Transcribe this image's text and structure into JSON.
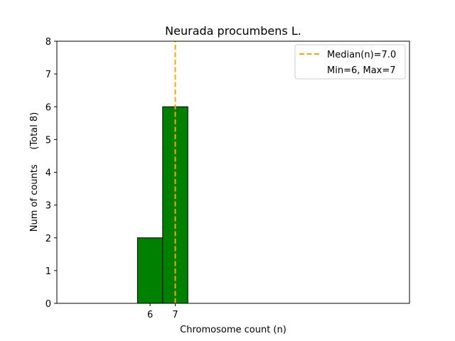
{
  "chart_data": {
    "type": "bar",
    "title": "Neurada procumbens L.",
    "xlabel": "Chromosome count (n)",
    "ylabel": "Num of counts     (Total 8)",
    "categories": [
      6,
      7
    ],
    "values": [
      2,
      6
    ],
    "xlim": [
      2.3,
      16.3
    ],
    "ylim": [
      0,
      8
    ],
    "yticks": [
      0,
      1,
      2,
      3,
      4,
      5,
      6,
      7,
      8
    ],
    "xticks": [
      6,
      7
    ],
    "baseline_span": [
      2.3,
      12.8
    ],
    "median": 7.0,
    "legend": {
      "placement": "top-right",
      "entries": [
        "Median(n)=7.0",
        "Min=6, Max=7"
      ]
    },
    "colors": {
      "bar": "#008000",
      "median": "#ffa500"
    },
    "grid": false
  }
}
